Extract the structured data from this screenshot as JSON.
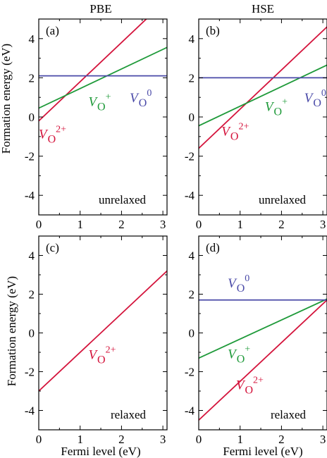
{
  "columns": [
    "PBE",
    "HSE"
  ],
  "colors": {
    "V2+": "#d4143c",
    "V+": "#1f9a3a",
    "V0": "#4a4aa8",
    "axis": "#000000"
  },
  "chart_data": [
    {
      "id": "a",
      "type": "line",
      "panel_label": "(a)",
      "column": "PBE",
      "status": "unrelaxed",
      "xlabel": "",
      "ylabel": "Formation energy (eV)",
      "xlim": [
        0,
        3.1
      ],
      "ylim": [
        -5,
        5
      ],
      "xticks": [
        "0",
        "1",
        "2",
        "3"
      ],
      "yticks": [
        "4",
        "2",
        "0",
        "-2",
        "-4"
      ],
      "series": [
        {
          "name": "V_O^2+",
          "x": [
            0,
            3.1
          ],
          "y": [
            -0.2,
            6.0
          ]
        },
        {
          "name": "V_O^+",
          "x": [
            0,
            3.1
          ],
          "y": [
            0.45,
            3.55
          ]
        },
        {
          "name": "V_O^0",
          "x": [
            0,
            3.1
          ],
          "y": [
            2.1,
            2.1
          ]
        }
      ]
    },
    {
      "id": "b",
      "type": "line",
      "panel_label": "(b)",
      "column": "HSE",
      "status": "unrelaxed",
      "xlabel": "",
      "ylabel": "",
      "xlim": [
        0,
        3.1
      ],
      "ylim": [
        -5,
        5
      ],
      "xticks": [
        "0",
        "1",
        "2",
        "3"
      ],
      "yticks": [
        "4",
        "2",
        "0",
        "-2",
        "-4"
      ],
      "series": [
        {
          "name": "V_O^2+",
          "x": [
            0,
            3.1
          ],
          "y": [
            -1.6,
            4.6
          ]
        },
        {
          "name": "V_O^+",
          "x": [
            0,
            3.1
          ],
          "y": [
            -0.45,
            2.65
          ]
        },
        {
          "name": "V_O^0",
          "x": [
            0,
            3.1
          ],
          "y": [
            2.0,
            2.0
          ]
        }
      ]
    },
    {
      "id": "c",
      "type": "line",
      "panel_label": "(c)",
      "column": "PBE",
      "status": "relaxed",
      "xlabel": "Fermi level (eV)",
      "ylabel": "Formation energy (eV)",
      "xlim": [
        0,
        3.1
      ],
      "ylim": [
        -5,
        5
      ],
      "xticks": [
        "0",
        "1",
        "2",
        "3"
      ],
      "yticks": [
        "4",
        "2",
        "0",
        "-2",
        "-4"
      ],
      "series": [
        {
          "name": "V_O^2+",
          "x": [
            0,
            3.1
          ],
          "y": [
            -3.0,
            3.2
          ]
        }
      ]
    },
    {
      "id": "d",
      "type": "line",
      "panel_label": "(d)",
      "column": "HSE",
      "status": "relaxed",
      "xlabel": "Fermi level (eV)",
      "ylabel": "",
      "xlim": [
        0,
        3.1
      ],
      "ylim": [
        -5,
        5
      ],
      "xticks": [
        "0",
        "1",
        "2",
        "3"
      ],
      "yticks": [
        "4",
        "2",
        "0",
        "-2",
        "-4"
      ],
      "series": [
        {
          "name": "V_O^2+",
          "x": [
            0,
            3.1
          ],
          "y": [
            -4.5,
            1.7
          ]
        },
        {
          "name": "V_O^+",
          "x": [
            0,
            3.1
          ],
          "y": [
            -1.3,
            1.75
          ]
        },
        {
          "name": "V_O^0",
          "x": [
            0,
            3.1
          ],
          "y": [
            1.7,
            1.7
          ]
        }
      ]
    }
  ],
  "species_labels": {
    "a": [
      {
        "series": "V_O^2+",
        "base": "V",
        "sub": "O",
        "sup": "2+",
        "color": "V2+",
        "dx": 0.0,
        "dy": -1.1
      },
      {
        "series": "V_O^+",
        "base": "V",
        "sub": "O",
        "sup": "+",
        "color": "V+",
        "dx": 1.2,
        "dy": 0.55
      },
      {
        "series": "V_O^0",
        "base": "V",
        "sub": "O",
        "sup": "0",
        "color": "V0",
        "dx": 2.2,
        "dy": 0.75
      }
    ],
    "b": [
      {
        "series": "V_O^2+",
        "base": "V",
        "sub": "O",
        "sup": "2+",
        "color": "V2+",
        "dx": 0.55,
        "dy": -0.95
      },
      {
        "series": "V_O^+",
        "base": "V",
        "sub": "O",
        "sup": "+",
        "color": "V+",
        "dx": 1.6,
        "dy": 0.3
      },
      {
        "series": "V_O^0",
        "base": "V",
        "sub": "O",
        "sup": "0",
        "color": "V0",
        "dx": 2.55,
        "dy": 0.75
      }
    ],
    "c": [
      {
        "series": "V_O^2+",
        "base": "V",
        "sub": "O",
        "sup": "2+",
        "color": "V2+",
        "dx": 1.2,
        "dy": -1.35
      }
    ],
    "d": [
      {
        "series": "V_O^0",
        "base": "V",
        "sub": "O",
        "sup": "0",
        "color": "V0",
        "dx": 0.7,
        "dy": 2.35
      },
      {
        "series": "V_O^+",
        "base": "V",
        "sub": "O",
        "sup": "+",
        "color": "V+",
        "dx": 0.7,
        "dy": -1.3
      },
      {
        "series": "V_O^2+",
        "base": "V",
        "sub": "O",
        "sup": "2+",
        "color": "V2+",
        "dx": 0.9,
        "dy": -2.9
      }
    ]
  }
}
